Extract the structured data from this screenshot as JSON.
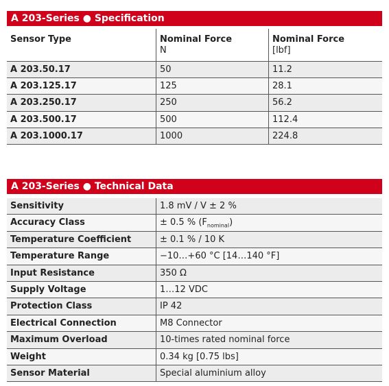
{
  "spec": {
    "title": "A 203-Series ● Specification",
    "columns": [
      {
        "name": "Sensor Type"
      },
      {
        "name": "Nominal Force",
        "unit": "N"
      },
      {
        "name": "Nominal Force",
        "unit": "[lbf]"
      }
    ],
    "rows": [
      [
        "A 203.50.17",
        "50",
        "11.2"
      ],
      [
        "A 203.125.17",
        "125",
        "28.1"
      ],
      [
        "A 203.250.17",
        "250",
        "56.2"
      ],
      [
        "A 203.500.17",
        "500",
        "112.4"
      ],
      [
        "A 203.1000.17",
        "1000",
        "224.8"
      ]
    ]
  },
  "tech": {
    "title": "A 203-Series ● Technical Data",
    "rows": [
      {
        "label": "Sensitivity",
        "value": "1.8 mV / V  ± 2 %"
      },
      {
        "label": "Accuracy Class",
        "value": "± 0.5 % (F",
        "sub": "nominal",
        "value_end": ")"
      },
      {
        "label": "Temperature Coefficient",
        "value": "± 0.1 % / 10 K"
      },
      {
        "label": "Temperature Range",
        "value": "−10…+60 °C [14…140 °F]"
      },
      {
        "label": "Input Resistance",
        "value": "350 Ω"
      },
      {
        "label": "Supply Voltage",
        "value": "1…12 VDC"
      },
      {
        "label": "Protection Class",
        "value": "IP 42"
      },
      {
        "label": "Electrical Connection",
        "value": "M8 Connector"
      },
      {
        "label": "Maximum Overload",
        "value": "10-times rated nominal force"
      },
      {
        "label": "Weight",
        "value": "0.34 kg [0.75 lbs]"
      },
      {
        "label": "Sensor Material",
        "value": "Special aluminium alloy"
      }
    ]
  }
}
